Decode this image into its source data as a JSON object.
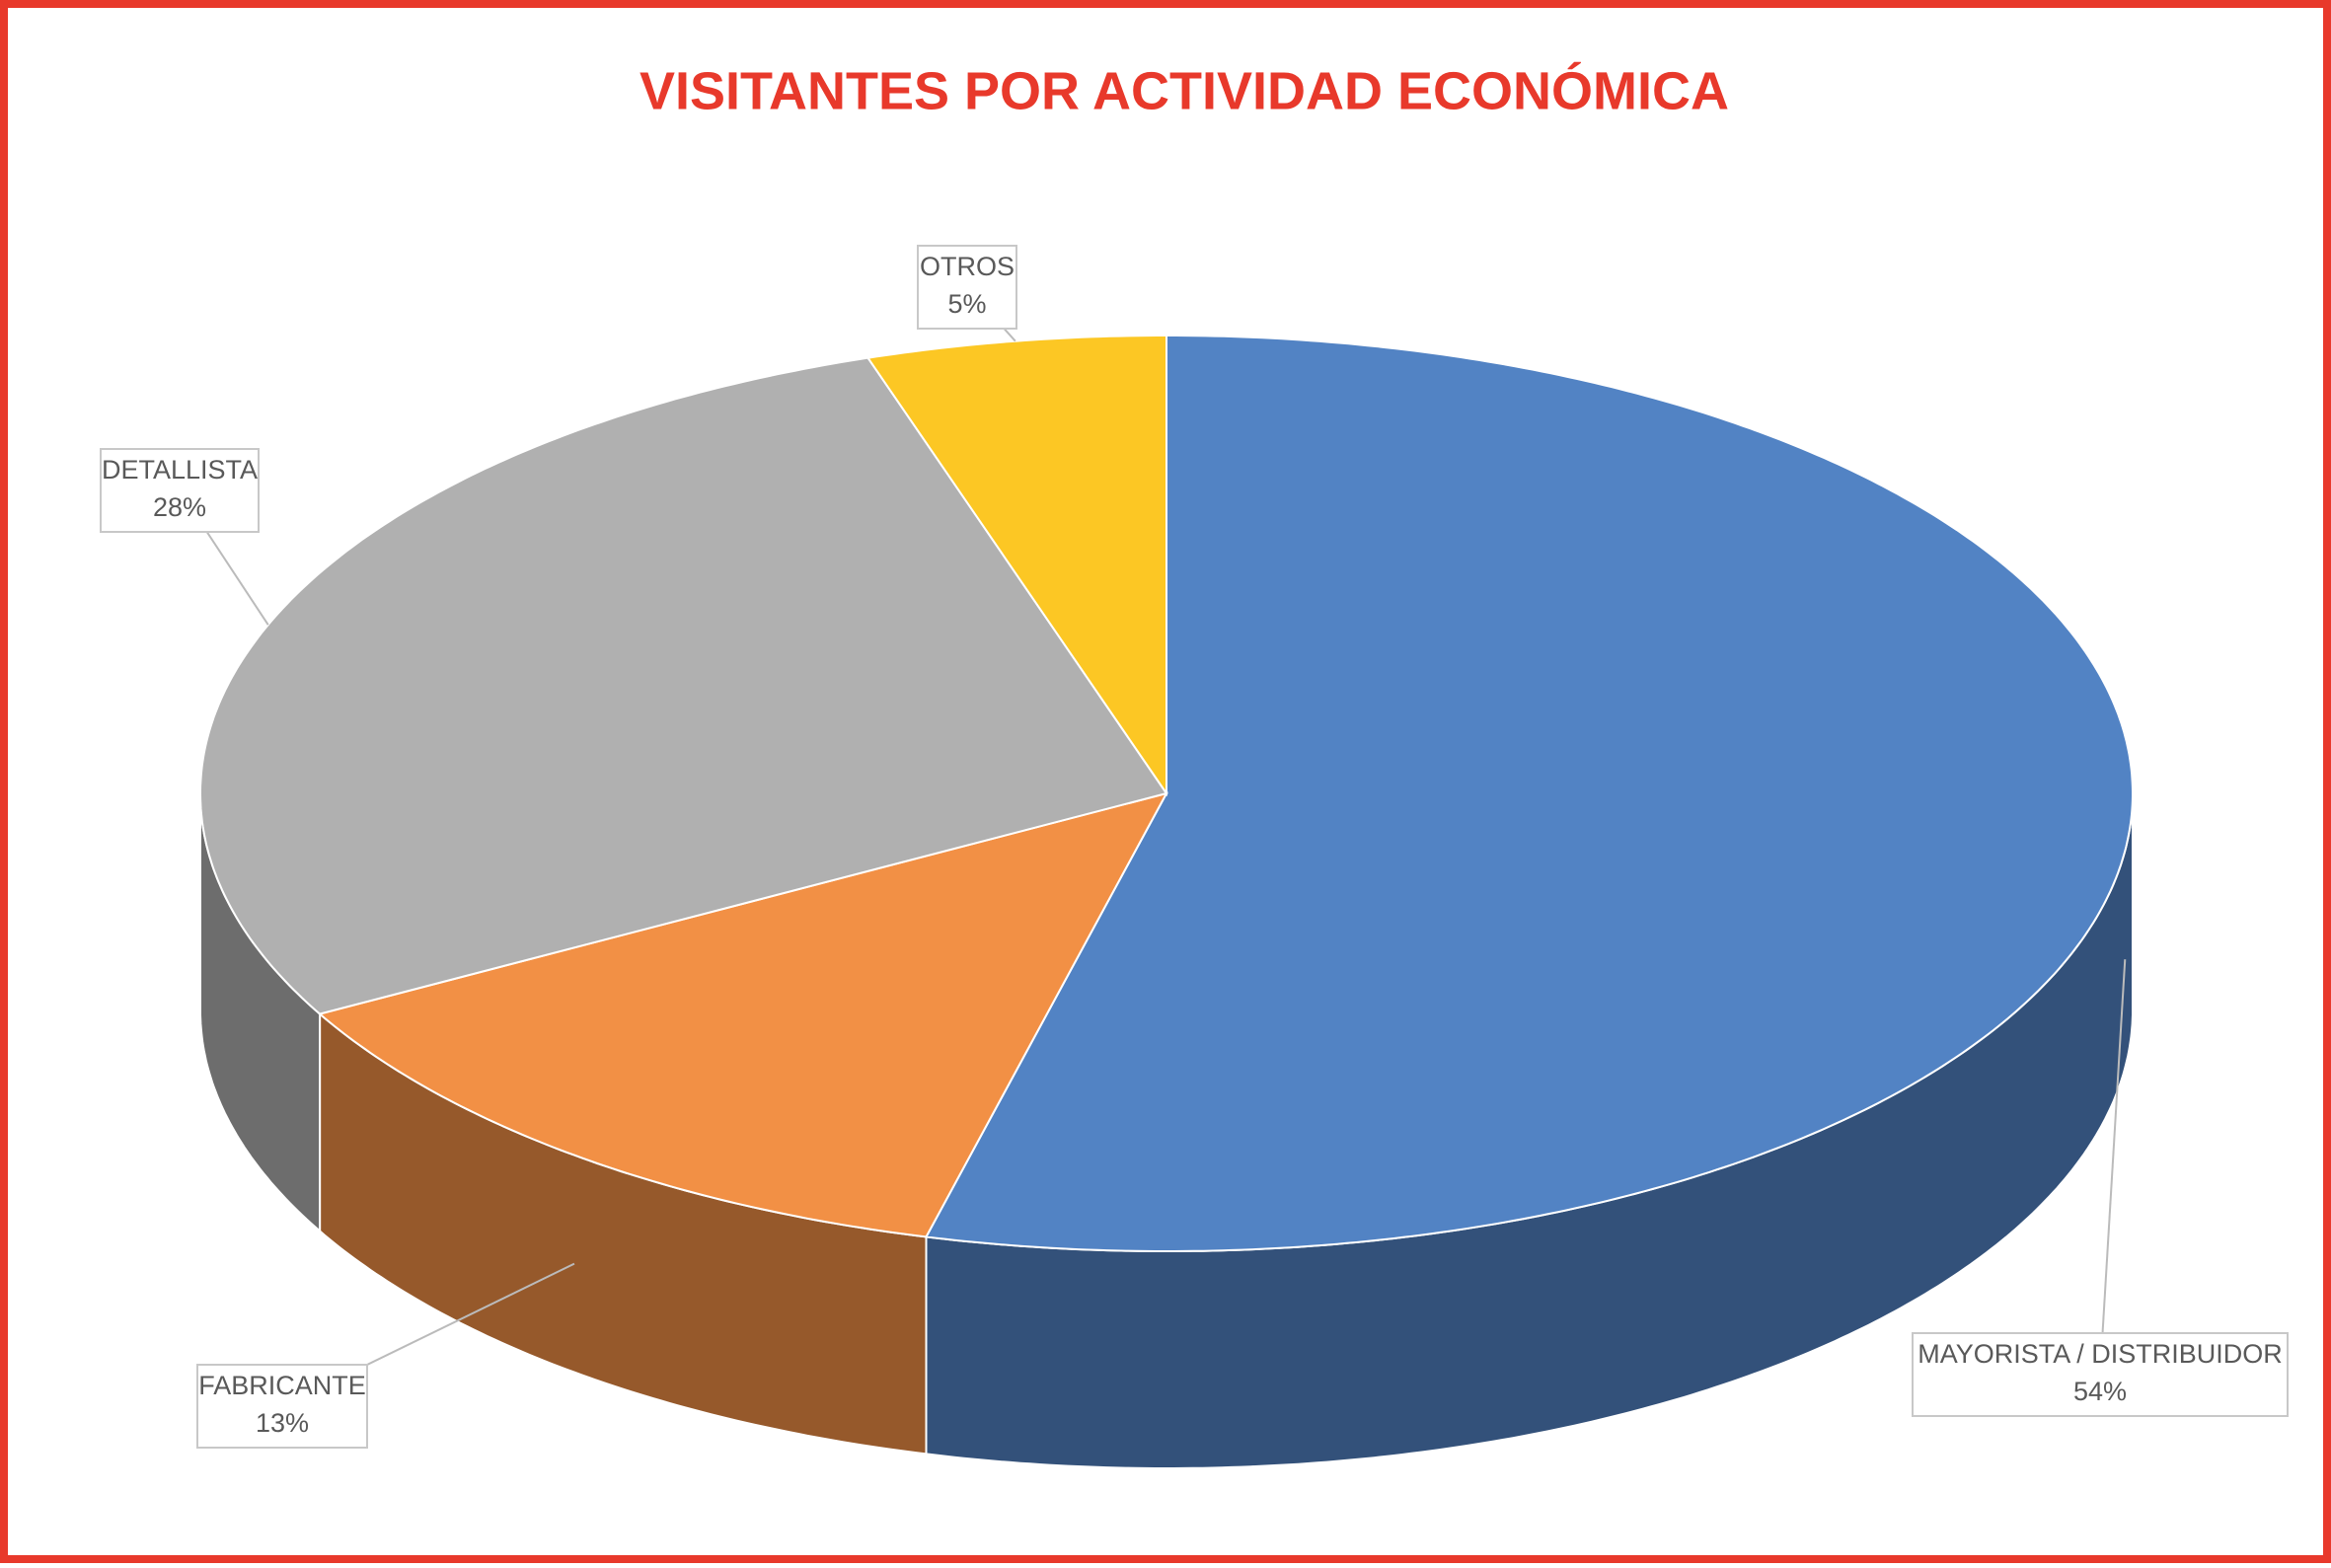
{
  "chart_data": {
    "type": "pie3d",
    "title": "VISITANTES POR ACTIVIDAD ECONÓMICA",
    "categories": [
      "MAYORISTA / DISTRIBUIDOR",
      "FABRICANTE",
      "DETALLISTA",
      "OTROS"
    ],
    "values": [
      54,
      13,
      28,
      5
    ],
    "value_labels": [
      "54%",
      "13%",
      "28%",
      "5%"
    ],
    "colors": [
      "#5283c4",
      "#f29045",
      "#b0b0b0",
      "#fcc724"
    ]
  }
}
